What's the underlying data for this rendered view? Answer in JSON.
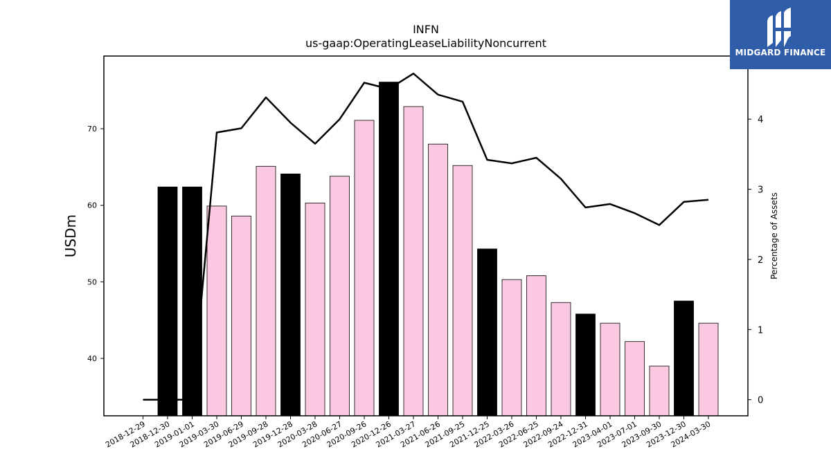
{
  "chart_data": {
    "type": "bar",
    "title": "INFN",
    "subtitle": "us-gaap:OperatingLeaseLiabilityNoncurrent",
    "ylabel": "USDm",
    "y2label": "Percentage of Assets",
    "categories": [
      "2018-12-29",
      "2018-12-30",
      "2019-01-01",
      "2019-03-30",
      "2019-06-29",
      "2019-09-28",
      "2019-12-28",
      "2020-03-28",
      "2020-06-27",
      "2020-09-26",
      "2020-12-26",
      "2021-03-27",
      "2021-06-26",
      "2021-09-25",
      "2021-12-25",
      "2022-03-26",
      "2022-06-25",
      "2022-09-24",
      "2022-12-31",
      "2023-04-01",
      "2023-07-01",
      "2023-09-30",
      "2023-12-30",
      "2024-03-30"
    ],
    "ylim": [
      32.5,
      79.5
    ],
    "y2lim": [
      -0.23,
      4.9
    ],
    "yticks": [
      40,
      50,
      60,
      70
    ],
    "y2ticks": [
      0,
      1,
      2,
      3,
      4
    ],
    "series": [
      {
        "kind": "bar",
        "values": [
          null,
          62.4,
          62.4,
          59.9,
          58.6,
          65.1,
          64.1,
          60.3,
          63.8,
          71.1,
          76.1,
          72.9,
          68.0,
          65.2,
          54.3,
          50.3,
          50.8,
          47.3,
          45.8,
          44.6,
          42.2,
          39.0,
          47.5,
          44.6
        ],
        "highlight": [
          false,
          true,
          true,
          false,
          false,
          false,
          true,
          false,
          false,
          false,
          true,
          false,
          false,
          false,
          true,
          false,
          false,
          false,
          true,
          false,
          false,
          false,
          true,
          false
        ]
      },
      {
        "kind": "line",
        "axis": "right",
        "values": [
          0.0,
          0.0,
          0.0,
          3.81,
          3.87,
          4.31,
          3.95,
          3.65,
          4.0,
          4.52,
          4.43,
          4.65,
          4.35,
          4.25,
          3.42,
          3.37,
          3.45,
          3.15,
          2.74,
          2.79,
          2.66,
          2.49,
          2.82,
          2.85
        ]
      }
    ],
    "colors": {
      "highlight_bar": "#000000",
      "normal_bar": "#fbc8e1",
      "bar_edge": "#000000",
      "line": "#000000"
    },
    "grid": false
  },
  "logo": {
    "text": "MIDGARD FINANCE",
    "icon": "midgard-logo-icon"
  }
}
